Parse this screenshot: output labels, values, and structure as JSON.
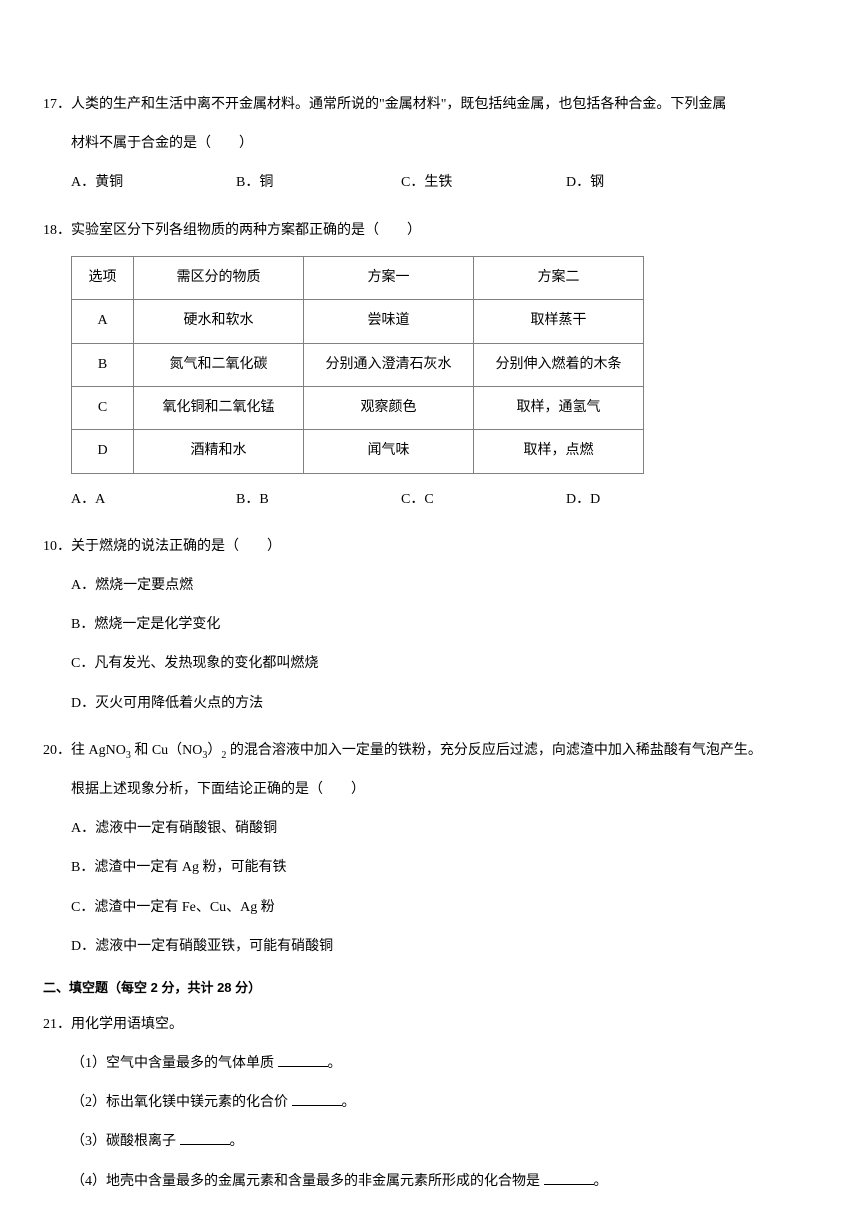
{
  "q17": {
    "num": "17．",
    "text1": "人类的生产和生活中离不开金属材料。通常所说的\"金属材料\"，既包括纯金属，也包括各种合金。下列金属",
    "text2": "材料不属于合金的是（　　）",
    "a": "A．黄铜",
    "b": "B．铜",
    "c": "C．生铁",
    "d": "D．钢"
  },
  "q18": {
    "num": "18．",
    "text": "实验室区分下列各组物质的两种方案都正确的是（　　）",
    "table": {
      "headers": [
        "选项",
        "需区分的物质",
        "方案一",
        "方案二"
      ],
      "rows": [
        [
          "A",
          "硬水和软水",
          "尝味道",
          "取样蒸干"
        ],
        [
          "B",
          "氮气和二氧化碳",
          "分别通入澄清石灰水",
          "分别伸入燃着的木条"
        ],
        [
          "C",
          "氧化铜和二氧化锰",
          "观察颜色",
          "取样，通氢气"
        ],
        [
          "D",
          "酒精和水",
          "闻气味",
          "取样，点燃"
        ]
      ]
    },
    "a": "A．A",
    "b": "B．B",
    "c": "C．C",
    "d": "D．D"
  },
  "q10": {
    "num": "10．",
    "text": "关于燃烧的说法正确的是（　　）",
    "a": "A．燃烧一定要点燃",
    "b": "B．燃烧一定是化学变化",
    "c": "C．凡有发光、发热现象的变化都叫燃烧",
    "d": "D．灭火可用降低着火点的方法"
  },
  "q20": {
    "num": "20．",
    "text1_pre": "往 AgNO",
    "text1_mid": " 和 Cu（NO",
    "text1_mid2": "）",
    "text1_post": " 的混合溶液中加入一定量的铁粉，充分反应后过滤，向滤渣中加入稀盐酸有气泡产生。",
    "text2": "根据上述现象分析，下面结论正确的是（　　）",
    "a": "A．滤液中一定有硝酸银、硝酸铜",
    "b": "B．滤渣中一定有 Ag 粉，可能有铁",
    "c": "C．滤渣中一定有 Fe、Cu、Ag 粉",
    "d": "D．滤液中一定有硝酸亚铁，可能有硝酸铜"
  },
  "section2": "二、填空题（每空 2 分，共计 28 分）",
  "q21": {
    "num": "21．",
    "text": "用化学用语填空。",
    "s1": "（1）空气中含量最多的气体单质 ",
    "s1_end": "。",
    "s2": "（2）标出氧化镁中镁元素的化合价 ",
    "s2_end": "。",
    "s3": "（3）碳酸根离子 ",
    "s3_end": "。",
    "s4": "（4）地壳中含量最多的金属元素和含量最多的非金属元素所形成的化合物是 ",
    "s4_end": "。"
  }
}
